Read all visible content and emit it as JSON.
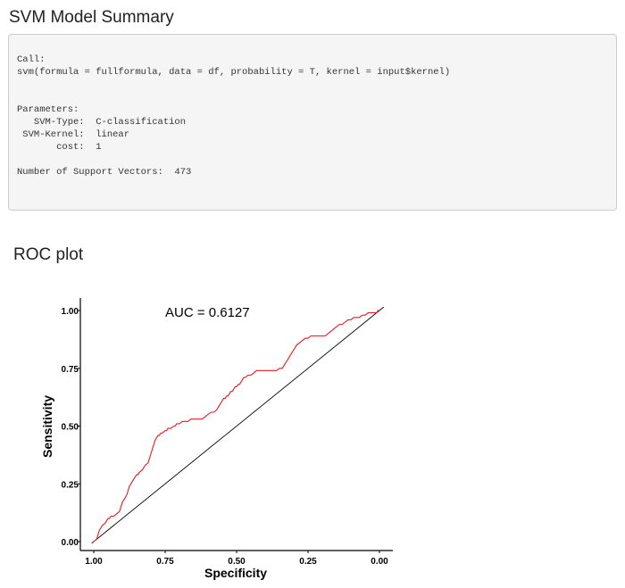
{
  "summary": {
    "title": "SVM Model Summary",
    "lines": [
      "Call:",
      "svm(formula = fullformula, data = df, probability = T, kernel = input$kernel)",
      "",
      "",
      "Parameters:",
      "   SVM-Type:  C-classification",
      " SVM-Kernel:  linear",
      "       cost:  1",
      "",
      "Number of Support Vectors:  473"
    ]
  },
  "roc": {
    "title": "ROC plot"
  },
  "chart_data": {
    "type": "line",
    "title": "",
    "annotation": "AUC = 0.6127",
    "xlabel": "Specificity",
    "ylabel": "Sensitivity",
    "x_reversed": true,
    "xlim": [
      1.0,
      0.0
    ],
    "ylim": [
      0.0,
      1.0
    ],
    "xticks": [
      "1.00",
      "0.75",
      "0.50",
      "0.25",
      "0.00"
    ],
    "yticks": [
      "0.00",
      "0.25",
      "0.50",
      "0.75",
      "1.00"
    ],
    "grid": false,
    "series": [
      {
        "color": "#e8191f",
        "x": [
          1.0,
          0.99,
          0.985,
          0.98,
          0.975,
          0.97,
          0.96,
          0.955,
          0.95,
          0.945,
          0.94,
          0.93,
          0.92,
          0.91,
          0.905,
          0.9,
          0.895,
          0.89,
          0.885,
          0.88,
          0.875,
          0.87,
          0.86,
          0.855,
          0.85,
          0.845,
          0.84,
          0.83,
          0.825,
          0.82,
          0.81,
          0.805,
          0.8,
          0.795,
          0.79,
          0.785,
          0.78,
          0.775,
          0.77,
          0.765,
          0.76,
          0.75,
          0.745,
          0.74,
          0.73,
          0.72,
          0.715,
          0.71,
          0.7,
          0.69,
          0.68,
          0.67,
          0.66,
          0.65,
          0.64,
          0.63,
          0.62,
          0.61,
          0.6,
          0.59,
          0.58,
          0.57,
          0.565,
          0.56,
          0.555,
          0.55,
          0.545,
          0.54,
          0.535,
          0.53,
          0.525,
          0.52,
          0.515,
          0.51,
          0.505,
          0.5,
          0.495,
          0.49,
          0.485,
          0.48,
          0.475,
          0.47,
          0.46,
          0.45,
          0.44,
          0.43,
          0.42,
          0.41,
          0.4,
          0.39,
          0.38,
          0.37,
          0.36,
          0.35,
          0.34,
          0.335,
          0.33,
          0.325,
          0.32,
          0.315,
          0.31,
          0.305,
          0.3,
          0.295,
          0.29,
          0.28,
          0.27,
          0.26,
          0.25,
          0.24,
          0.23,
          0.22,
          0.21,
          0.2,
          0.19,
          0.18,
          0.17,
          0.16,
          0.15,
          0.14,
          0.13,
          0.12,
          0.11,
          0.1,
          0.09,
          0.08,
          0.07,
          0.06,
          0.05,
          0.04,
          0.03,
          0.02,
          0.01,
          0.005,
          0.0
        ],
        "y": [
          0.0,
          0.01,
          0.03,
          0.05,
          0.06,
          0.07,
          0.08,
          0.09,
          0.1,
          0.1,
          0.11,
          0.11,
          0.12,
          0.13,
          0.15,
          0.17,
          0.18,
          0.19,
          0.2,
          0.22,
          0.24,
          0.25,
          0.27,
          0.28,
          0.29,
          0.29,
          0.3,
          0.31,
          0.32,
          0.33,
          0.34,
          0.36,
          0.38,
          0.4,
          0.42,
          0.44,
          0.45,
          0.46,
          0.46,
          0.47,
          0.47,
          0.48,
          0.48,
          0.49,
          0.49,
          0.5,
          0.5,
          0.51,
          0.51,
          0.52,
          0.52,
          0.52,
          0.53,
          0.53,
          0.53,
          0.53,
          0.53,
          0.54,
          0.55,
          0.56,
          0.56,
          0.57,
          0.58,
          0.59,
          0.6,
          0.61,
          0.62,
          0.62,
          0.63,
          0.63,
          0.64,
          0.65,
          0.65,
          0.66,
          0.67,
          0.67,
          0.68,
          0.68,
          0.69,
          0.7,
          0.71,
          0.71,
          0.72,
          0.72,
          0.73,
          0.74,
          0.74,
          0.74,
          0.74,
          0.74,
          0.74,
          0.74,
          0.74,
          0.75,
          0.75,
          0.76,
          0.77,
          0.78,
          0.79,
          0.8,
          0.81,
          0.82,
          0.83,
          0.84,
          0.85,
          0.86,
          0.87,
          0.88,
          0.88,
          0.89,
          0.89,
          0.89,
          0.89,
          0.89,
          0.89,
          0.9,
          0.91,
          0.92,
          0.93,
          0.94,
          0.94,
          0.95,
          0.96,
          0.96,
          0.97,
          0.97,
          0.97,
          0.98,
          0.98,
          0.99,
          0.99,
          0.99,
          0.99,
          1.0,
          1.0
        ]
      }
    ],
    "reference_line": {
      "from": [
        1.0,
        0.0
      ],
      "to": [
        0.0,
        1.0
      ],
      "color": "#000000"
    }
  }
}
